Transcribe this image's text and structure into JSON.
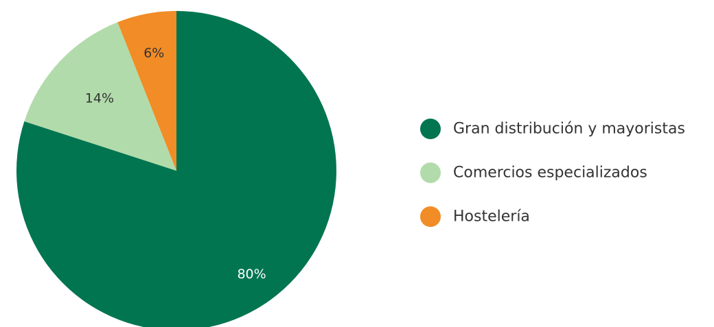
{
  "chart_data": {
    "type": "pie",
    "categories": [
      "Gran distribución y mayoristas",
      "Comercios especializados",
      "Hostelería"
    ],
    "values": [
      80,
      14,
      6
    ],
    "labels": [
      "80%",
      "14%",
      "6%"
    ],
    "colors": [
      "#007550",
      "#b2dbab",
      "#f18c26"
    ],
    "label_colors": [
      "#ffffff",
      "#333333",
      "#333333"
    ],
    "legend_position": "right",
    "start": "top",
    "direction": "clockwise"
  }
}
